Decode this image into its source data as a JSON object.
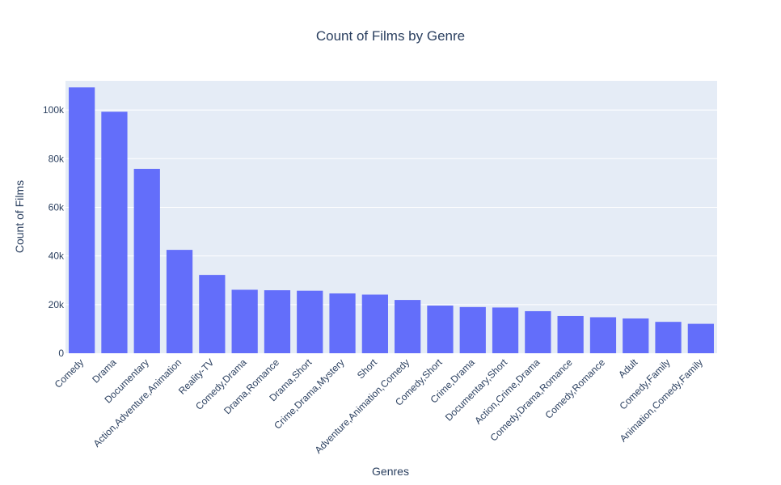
{
  "chart_data": {
    "type": "bar",
    "title": "Count of Films by Genre",
    "xlabel": "Genres",
    "ylabel": "Count of Films",
    "ylim": [
      0,
      112000
    ],
    "y_ticks": [
      0,
      20000,
      40000,
      60000,
      80000,
      100000
    ],
    "y_tick_labels": [
      "0",
      "20k",
      "40k",
      "60k",
      "80k",
      "100k"
    ],
    "grid": true,
    "bar_color": "#636efa",
    "plot_bg": "#e5ecf6",
    "categories": [
      "Comedy",
      "Drama",
      "Documentary",
      "Action,Adventure,Animation",
      "Reality-TV",
      "Comedy,Drama",
      "Drama,Romance",
      "Drama,Short",
      "Crime,Drama,Mystery",
      "Short",
      "Adventure,Animation,Comedy",
      "Comedy,Short",
      "Crime,Drama",
      "Documentary,Short",
      "Action,Crime,Drama",
      "Comedy,Drama,Romance",
      "Comedy,Romance",
      "Adult",
      "Comedy,Family",
      "Animation,Comedy,Family"
    ],
    "values": [
      109300,
      99300,
      75800,
      42500,
      32200,
      26100,
      25900,
      25700,
      24600,
      24100,
      21900,
      19600,
      19000,
      18800,
      17300,
      15300,
      14800,
      14300,
      12900,
      12100
    ]
  }
}
